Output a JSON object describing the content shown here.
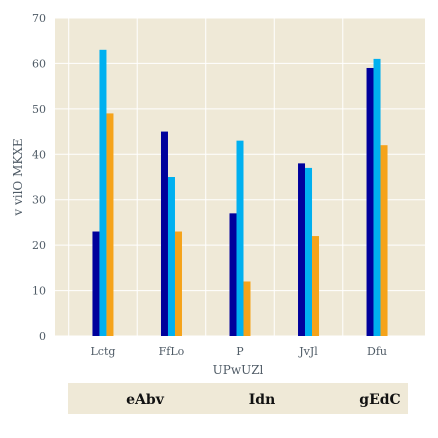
{
  "chart_data": {
    "type": "bar",
    "categories": [
      "Lctg",
      "FfLo",
      "P",
      "JvJl",
      "Dfu"
    ],
    "series": [
      {
        "name": "eAbv",
        "values": [
          23,
          45,
          27,
          38,
          59
        ]
      },
      {
        "name": "Idn",
        "values": [
          63,
          35,
          43,
          37,
          61
        ]
      },
      {
        "name": "gEdC",
        "values": [
          49,
          23,
          12,
          22,
          42
        ]
      }
    ],
    "title": "",
    "xlabel": "UPwUZl",
    "ylabel": "v vilO MKXE",
    "ylim": [
      0,
      70
    ],
    "yticks": [
      0,
      10,
      20,
      30,
      40,
      50,
      60,
      70
    ],
    "grid": true,
    "legend_position": "bottom",
    "colors": {
      "plot_background": "#efe9d7",
      "legend_background": "#efe9d7",
      "grid": "#ffffff",
      "series": [
        "#00009c",
        "#00b0f0",
        "#f5a31a"
      ]
    }
  }
}
